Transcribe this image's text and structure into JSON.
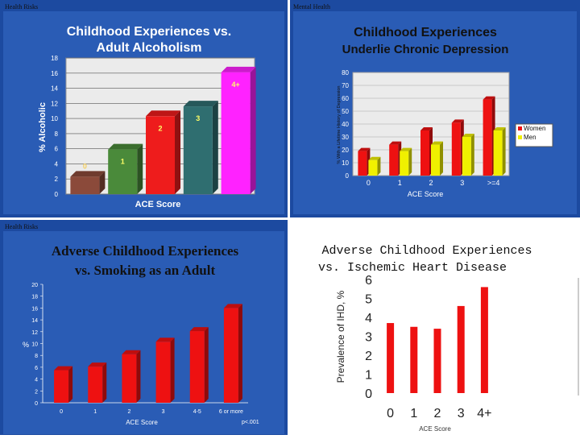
{
  "chart_data": [
    {
      "type": "bar",
      "panel_tag": "Health Risks",
      "title_lines": [
        "Childhood Experiences vs.",
        "Adult Alcoholism"
      ],
      "ylabel": "% Alcoholic",
      "xlabel": "ACE Score",
      "ylim": [
        0,
        18
      ],
      "yticks": [
        0,
        2,
        4,
        6,
        8,
        10,
        12,
        14,
        16,
        18
      ],
      "categories": [
        "0",
        "1",
        "2",
        "3",
        "4+"
      ],
      "values": [
        2.3,
        5.9,
        10.3,
        11.6,
        16.1
      ],
      "bar_labels": [
        "0",
        "1",
        "2",
        "3",
        "4+"
      ],
      "colors": [
        "#8b4a3a",
        "#4a8a3a",
        "#ee1c1c",
        "#2f6e70",
        "#ff22ff"
      ]
    },
    {
      "type": "bar",
      "panel_tag": "Mental Health",
      "title_lines": [
        "Childhood Experiences",
        "Underlie Chronic Depression"
      ],
      "ylabel": "% With a Lifetime History of Depression",
      "xlabel": "ACE Score",
      "ylim": [
        0,
        80
      ],
      "yticks": [
        0,
        10,
        20,
        30,
        40,
        50,
        60,
        70,
        80
      ],
      "categories": [
        "0",
        "1",
        "2",
        "3",
        ">=4"
      ],
      "series": [
        {
          "name": "Women",
          "values": [
            19,
            24,
            35,
            41,
            59
          ],
          "color": "#ee1111"
        },
        {
          "name": "Men",
          "values": [
            12,
            19,
            24,
            30,
            35
          ],
          "color": "#f0f000"
        }
      ]
    },
    {
      "type": "bar",
      "panel_tag": "Health Risks",
      "title_lines": [
        "Adverse Childhood Experiences",
        "vs. Smoking as an Adult"
      ],
      "ylabel": "%",
      "xlabel": "ACE Score",
      "note": "p<.001",
      "ylim": [
        0,
        20
      ],
      "yticks": [
        0,
        2,
        4,
        6,
        8,
        10,
        12,
        14,
        16,
        18,
        20
      ],
      "categories": [
        "0",
        "1",
        "2",
        "3",
        "4-5",
        "6 or more"
      ],
      "values": [
        5.5,
        6.1,
        8.2,
        10.3,
        12.1,
        16.0
      ],
      "color": "#ee1111"
    },
    {
      "type": "bar",
      "title_lines": [
        "Adverse Childhood Experiences",
        "vs. Ischemic Heart Disease"
      ],
      "ylabel": "Prevalence of IHD, %",
      "xlabel": "ACE Score",
      "ylim": [
        0,
        6
      ],
      "yticks": [
        0,
        1,
        2,
        3,
        4,
        5,
        6
      ],
      "categories": [
        "0",
        "1",
        "2",
        "3",
        "4+"
      ],
      "values": [
        3.7,
        3.5,
        3.4,
        4.6,
        5.6
      ],
      "color": "#ee1111"
    }
  ]
}
